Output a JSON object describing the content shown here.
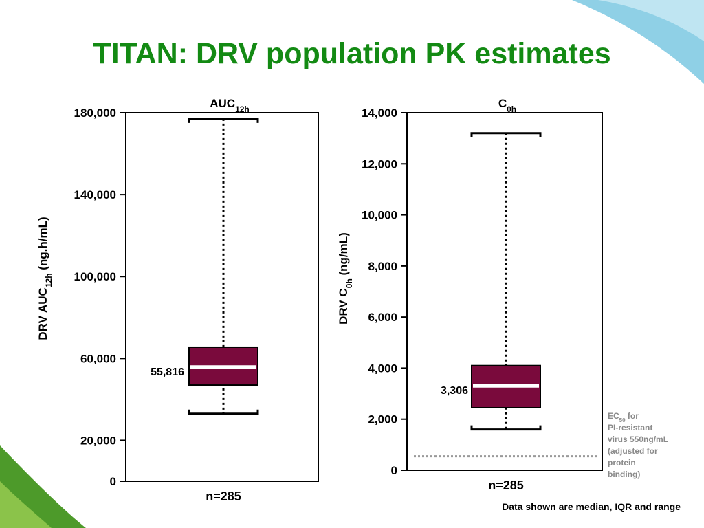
{
  "slide": {
    "title": "TITAN: DRV population PK estimates",
    "footnote": "Data shown are median, IQR and range",
    "ec50_note": [
      "EC50 for",
      "PI-resistant",
      "virus 550ng/mL",
      "(adjusted for",
      "protein",
      "binding)"
    ],
    "ec50_note_sub": "50"
  },
  "chart_data": [
    {
      "type": "box",
      "title": "AUC12h",
      "title_base": "AUC",
      "title_sub": "12h",
      "ylabel": "DRV AUC12h (ng.h/mL)",
      "ylabel_base": "DRV AUC",
      "ylabel_sub": "12h",
      "ylabel_suffix": " (ng.h/mL)",
      "ylim": [
        0,
        180000
      ],
      "yticks": [
        0,
        20000,
        60000,
        100000,
        140000,
        180000
      ],
      "ytick_labels": [
        "0",
        "20,000",
        "60,000",
        "100,000",
        "140,000",
        "180,000"
      ],
      "xlabel": "n=285",
      "box": {
        "min": 33000,
        "q1": 47000,
        "median": 55816,
        "q3": 65500,
        "max": 177000
      },
      "median_label": "55,816",
      "color": "#7a0a3c"
    },
    {
      "type": "box",
      "title": "C0h",
      "title_base": "C",
      "title_sub": "0h",
      "ylabel": "DRV C0h (ng/mL)",
      "ylabel_base": "DRV C",
      "ylabel_sub": "0h",
      "ylabel_suffix": " (ng/mL)",
      "ylim": [
        0,
        14000
      ],
      "yticks": [
        0,
        2000,
        4000,
        6000,
        8000,
        10000,
        12000,
        14000
      ],
      "ytick_labels": [
        "0",
        "2,000",
        "4,000",
        "6,000",
        "8,000",
        "10,000",
        "12,000",
        "14,000"
      ],
      "xlabel": "n=285",
      "box": {
        "min": 1600,
        "q1": 2450,
        "median": 3306,
        "q3": 4100,
        "max": 13200
      },
      "median_label": "3,306",
      "color": "#7a0a3c",
      "reference_line": {
        "value": 550,
        "style": "dotted",
        "color": "#999999"
      }
    }
  ]
}
